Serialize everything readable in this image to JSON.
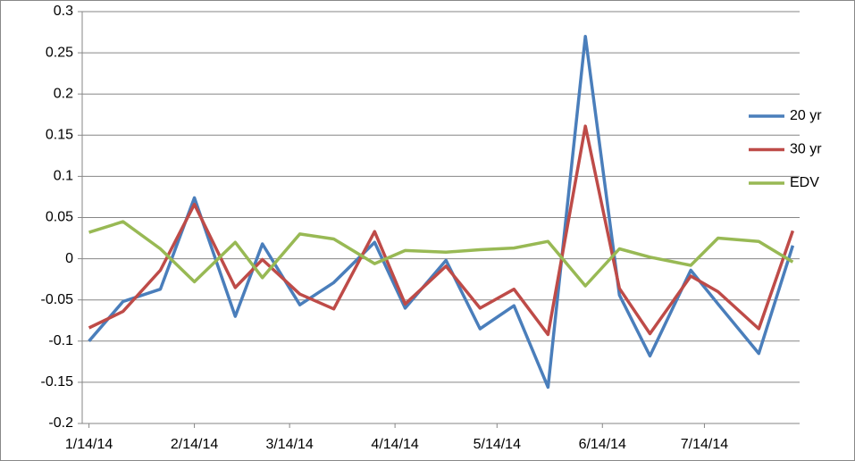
{
  "chart_data": {
    "type": "line",
    "x": [
      "1/14/14",
      "1/24/14",
      "2/4/14",
      "2/14/14",
      "2/26/14",
      "3/6/14",
      "3/17/14",
      "3/27/14",
      "4/8/14",
      "4/17/14",
      "4/29/14",
      "5/9/14",
      "5/19/14",
      "5/29/14",
      "6/9/14",
      "6/19/14",
      "6/28/14",
      "7/10/14",
      "7/18/14",
      "7/30/14",
      "8/9/14"
    ],
    "series": [
      {
        "name": "20 yr",
        "color": "#4a7ebb",
        "values": [
          -0.1,
          -0.052,
          -0.037,
          0.074,
          -0.07,
          0.018,
          -0.056,
          -0.029,
          0.02,
          -0.06,
          -0.002,
          -0.085,
          -0.057,
          -0.156,
          0.27,
          -0.044,
          -0.118,
          -0.014,
          -0.055,
          -0.115,
          0.016
        ]
      },
      {
        "name": "30 yr",
        "color": "#be4b48",
        "values": [
          -0.084,
          -0.064,
          -0.014,
          0.066,
          -0.035,
          -0.001,
          -0.043,
          -0.061,
          0.033,
          -0.055,
          -0.009,
          -0.06,
          -0.037,
          -0.092,
          0.161,
          -0.036,
          -0.091,
          -0.021,
          -0.04,
          -0.085,
          0.034
        ]
      },
      {
        "name": "EDV",
        "color": "#98b954",
        "values": [
          0.032,
          0.045,
          0.012,
          -0.028,
          0.02,
          -0.023,
          0.03,
          0.024,
          -0.006,
          0.01,
          0.008,
          0.011,
          0.013,
          0.021,
          -0.033,
          0.012,
          0.002,
          -0.008,
          0.025,
          0.021,
          -0.004
        ]
      }
    ],
    "xlim": [
      "1/12/14",
      "8/11/14"
    ],
    "xticks": [
      "1/14/14",
      "2/14/14",
      "3/14/14",
      "4/14/14",
      "5/14/14",
      "6/14/14",
      "7/14/14"
    ],
    "ylim": [
      -0.2,
      0.3
    ],
    "yticks": [
      -0.2,
      -0.15,
      -0.1,
      -0.05,
      0,
      0.05,
      0.1,
      0.15,
      0.2,
      0.25,
      0.3
    ],
    "grid": true,
    "legend": "right"
  }
}
